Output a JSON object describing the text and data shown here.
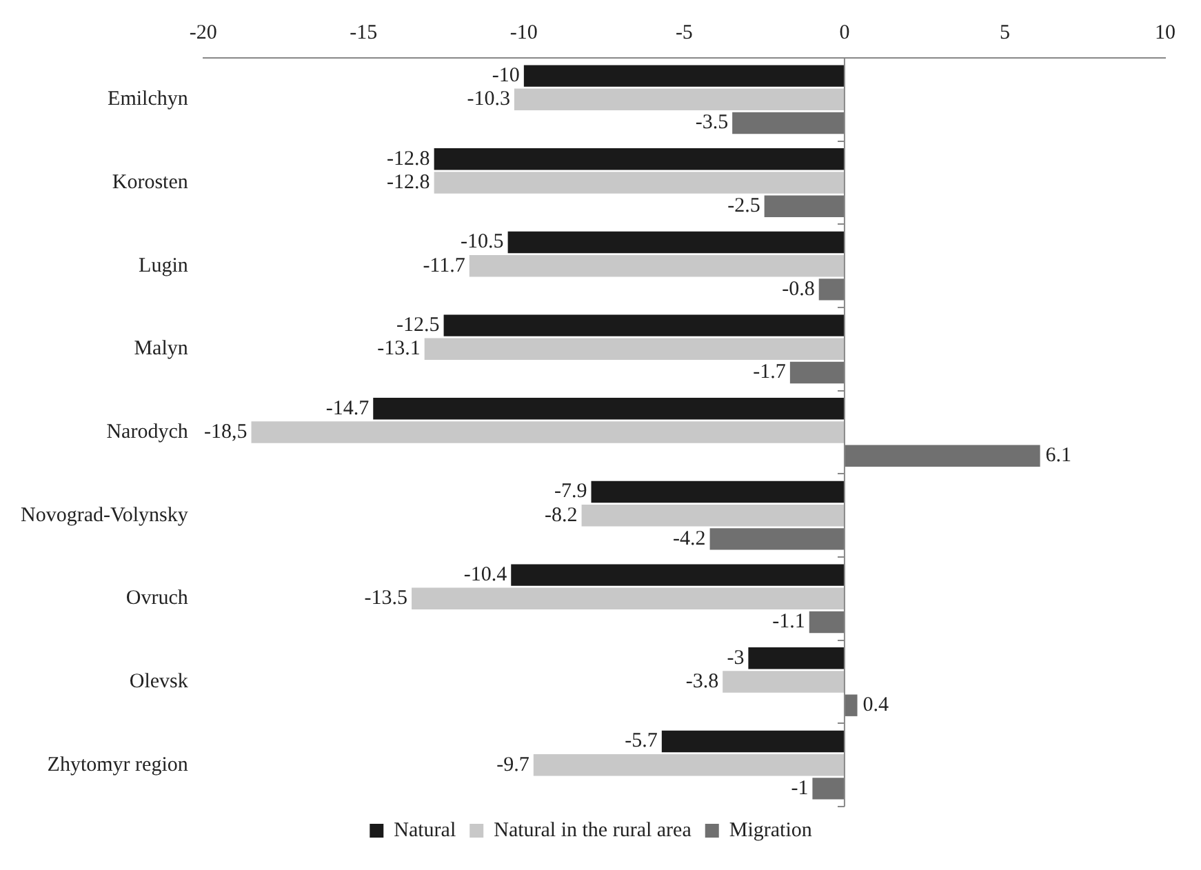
{
  "chart_data": {
    "type": "bar",
    "orientation": "horizontal",
    "categories": [
      "Emilchyn",
      "Korosten",
      "Lugin",
      "Malyn",
      "Narodych",
      "Novograd-Volynsky",
      "Ovruch",
      "Olevsk",
      "Zhytomyr region"
    ],
    "series": [
      {
        "name": "Natural",
        "color": "#1a1a1a",
        "values": [
          -10,
          -12.8,
          -10.5,
          -12.5,
          -14.7,
          -7.9,
          -10.4,
          -3,
          -5.7
        ],
        "value_labels": [
          "-10",
          "-12.8",
          "-10.5",
          "-12.5",
          "-14.7",
          "-7.9",
          "-10.4",
          "-3",
          "-5.7"
        ]
      },
      {
        "name": "Natural in the rural area",
        "color": "#c8c8c8",
        "values": [
          -10.3,
          -12.8,
          -11.7,
          -13.1,
          -18.5,
          -8.2,
          -13.5,
          -3.8,
          -9.7
        ],
        "value_labels": [
          "-10.3",
          "-12.8",
          "-11.7",
          "-13.1",
          "-18,5",
          "-8.2",
          "-13.5",
          "-3.8",
          "-9.7"
        ]
      },
      {
        "name": "Migration",
        "color": "#707070",
        "values": [
          -3.5,
          -2.5,
          -0.8,
          -1.7,
          6.1,
          -4.2,
          -1.1,
          0.4,
          -1
        ],
        "value_labels": [
          "-3.5",
          "-2.5",
          "-0.8",
          "-1.7",
          "6.1",
          "-4.2",
          "-1.1",
          "0.4",
          "-1"
        ]
      }
    ],
    "xlim": [
      -20,
      10
    ],
    "xticks": [
      -20,
      -15,
      -10,
      -5,
      0,
      5,
      10
    ],
    "ref_lines": [
      {
        "axis": "x",
        "value": 0,
        "color": "#888888"
      }
    ],
    "grid": false,
    "legend": "bottom"
  }
}
